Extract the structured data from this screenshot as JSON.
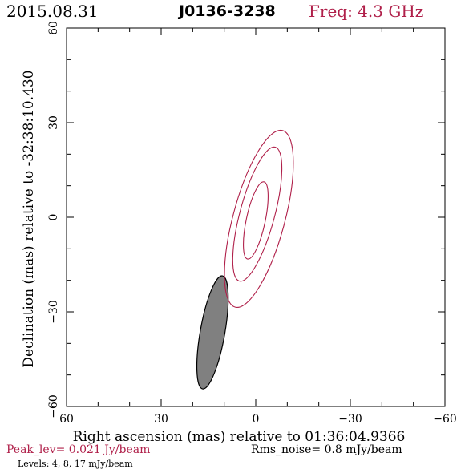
{
  "header": {
    "date": "2015.08.31",
    "source": "J0136-3238",
    "freq": "Freq: 4.3 GHz"
  },
  "footer": {
    "peak": "Peak_lev=  0.021 Jy/beam",
    "rms": "Rms_noise=  0.8 mJy/beam",
    "levels": "Levels:   4,   8,  17 mJy/beam"
  },
  "colors": {
    "contour": "#b0204a",
    "axis": "#000000",
    "beam_fill": "#808080"
  },
  "chart_data": {
    "type": "contour",
    "xlabel": "Right ascension (mas) relative to 01:36:04.9366",
    "ylabel": "Declination (mas) relative to -32:38:10.430",
    "xlim": [
      60,
      -60
    ],
    "ylim": [
      -60,
      60
    ],
    "xticks": [
      {
        "value": 60,
        "label": "60"
      },
      {
        "value": 30,
        "label": "30"
      },
      {
        "value": 0,
        "label": "0"
      },
      {
        "value": -30,
        "label": "−30"
      },
      {
        "value": -60,
        "label": "−60"
      }
    ],
    "yticks": [
      {
        "value": -60,
        "label": "−60"
      },
      {
        "value": -30,
        "label": "−30"
      },
      {
        "value": 0,
        "label": "0"
      },
      {
        "value": 30,
        "label": "30"
      },
      {
        "value": 60,
        "label": "60"
      }
    ],
    "minor_tick_step": 10,
    "contour_levels_mJy": [
      4,
      8,
      17
    ],
    "contours": [
      {
        "level": 4,
        "center": [
          -1,
          -0.5
        ],
        "semi_major": 29,
        "semi_minor": 8.2,
        "pa_deg": 15
      },
      {
        "level": 8,
        "center": [
          -0.5,
          1.0
        ],
        "semi_major": 22,
        "semi_minor": 5.5,
        "pa_deg": 15
      },
      {
        "level": 17,
        "center": [
          0.0,
          -1.0
        ],
        "semi_major": 12.5,
        "semi_minor": 3.0,
        "pa_deg": 12
      }
    ],
    "beam": {
      "center": [
        13.7,
        -36.5
      ],
      "semi_major": 18.2,
      "semi_minor": 3.9,
      "pa_deg": 10
    }
  }
}
